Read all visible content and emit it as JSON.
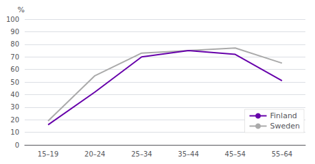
{
  "chart_data": {
    "type": "line",
    "categories": [
      "15–19",
      "20–24",
      "25–34",
      "35–44",
      "45–54",
      "55–64"
    ],
    "series": [
      {
        "name": "Finland",
        "color": "#6600aa",
        "values": [
          16,
          42,
          70,
          75,
          72,
          51
        ]
      },
      {
        "name": "Sweden",
        "color": "#aaaaaa",
        "values": [
          19,
          55,
          73,
          75,
          77,
          65
        ]
      }
    ],
    "ylabel": "%",
    "ylim": [
      0,
      100
    ],
    "yticks": [
      0,
      10,
      20,
      30,
      40,
      50,
      60,
      70,
      80,
      90,
      100
    ],
    "grid": true,
    "legend": "lower right"
  }
}
